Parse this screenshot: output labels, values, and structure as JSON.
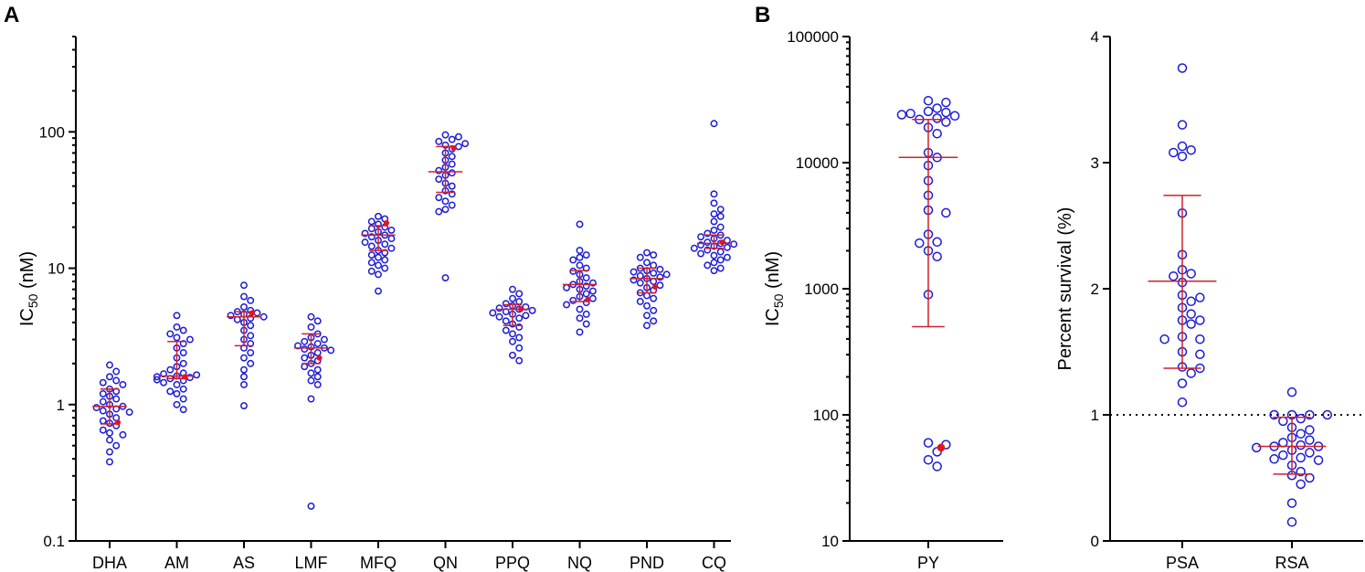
{
  "colors": {
    "point": "#1a1ad6",
    "reference": "#e8141c",
    "stat": "#d0202a"
  },
  "chart_data": [
    {
      "panel": "A",
      "type": "scatter",
      "scale": "log",
      "ylabel_main": "IC",
      "ylabel_sub": "50",
      "ylabel_unit": " (nM)",
      "ylim": [
        0.1,
        500
      ],
      "yticks": [
        0.1,
        1,
        10,
        100
      ],
      "ytick_labels": [
        "0.1",
        "1",
        "10",
        "100"
      ],
      "groups": [
        {
          "name": "DHA",
          "values": [
            1.95,
            1.75,
            1.6,
            1.5,
            1.45,
            1.4,
            1.3,
            1.25,
            1.2,
            1.15,
            1.1,
            1.05,
            1.0,
            0.97,
            0.95,
            0.93,
            0.9,
            0.88,
            0.85,
            0.8,
            0.76,
            0.73,
            0.7,
            0.65,
            0.62,
            0.6,
            0.55,
            0.5,
            0.45,
            0.38
          ],
          "ref": 0.74,
          "median": 0.97,
          "q1": 0.72,
          "q3": 1.3
        },
        {
          "name": "AM",
          "values": [
            4.5,
            3.7,
            3.5,
            3.3,
            3.1,
            3.0,
            2.8,
            2.6,
            2.4,
            2.2,
            2.0,
            1.9,
            1.8,
            1.7,
            1.68,
            1.65,
            1.62,
            1.6,
            1.58,
            1.55,
            1.52,
            1.5,
            1.45,
            1.4,
            1.3,
            1.25,
            1.2,
            1.1,
            1.0,
            0.92
          ],
          "ref": 1.6,
          "median": 1.62,
          "q1": 1.55,
          "q3": 2.9
        },
        {
          "name": "AS",
          "values": [
            7.5,
            6.2,
            5.8,
            5.2,
            4.9,
            4.8,
            4.7,
            4.6,
            4.5,
            4.4,
            4.3,
            4.2,
            4.0,
            3.8,
            3.5,
            3.2,
            3.0,
            2.8,
            2.6,
            2.4,
            2.2,
            2.0,
            1.8,
            1.6,
            1.4,
            0.98
          ],
          "ref": 4.7,
          "median": 4.4,
          "q1": 2.7,
          "q3": 4.8
        },
        {
          "name": "LMF",
          "values": [
            4.4,
            4.1,
            3.7,
            3.3,
            3.1,
            3.0,
            2.9,
            2.8,
            2.7,
            2.65,
            2.6,
            2.55,
            2.5,
            2.4,
            2.3,
            2.2,
            2.1,
            2.0,
            1.9,
            1.8,
            1.7,
            1.6,
            1.5,
            1.4,
            1.1,
            0.18
          ],
          "ref": 2.2,
          "median": 2.6,
          "q1": 2.0,
          "q3": 3.3
        },
        {
          "name": "MFQ",
          "values": [
            24,
            23,
            22,
            21,
            20,
            19.5,
            19,
            18.5,
            18,
            17.5,
            17,
            16.5,
            16,
            15.5,
            15,
            14.5,
            14,
            13.5,
            13,
            12.5,
            12,
            11.5,
            11,
            10.5,
            10,
            9.5,
            9,
            6.8
          ],
          "ref": 21.5,
          "median": 17.5,
          "q1": 13.5,
          "q3": 20.5
        },
        {
          "name": "QN",
          "values": [
            95,
            92,
            88,
            85,
            82,
            80,
            78,
            75,
            70,
            66,
            62,
            58,
            55,
            52,
            50,
            48,
            45,
            42,
            40,
            37,
            35,
            33,
            31,
            29,
            27,
            26,
            8.5
          ],
          "ref": 76,
          "median": 51,
          "q1": 36,
          "q3": 78
        },
        {
          "name": "PPQ",
          "values": [
            7.0,
            6.5,
            6.0,
            5.7,
            5.5,
            5.3,
            5.2,
            5.1,
            5.0,
            4.9,
            4.8,
            4.7,
            4.6,
            4.5,
            4.4,
            4.3,
            4.1,
            3.9,
            3.7,
            3.5,
            3.3,
            3.1,
            2.9,
            2.6,
            2.3,
            2.1
          ],
          "ref": 5.0,
          "median": 5.0,
          "q1": 3.8,
          "q3": 5.4
        },
        {
          "name": "NQ",
          "values": [
            21,
            13.5,
            12.5,
            12,
            11.5,
            10.5,
            10,
            9.5,
            9.0,
            8.5,
            8.0,
            7.8,
            7.6,
            7.4,
            7.2,
            7.0,
            6.8,
            6.5,
            6.2,
            6.0,
            5.8,
            5.6,
            5.4,
            5.0,
            4.6,
            4.3,
            3.9,
            3.4
          ],
          "ref": 5.9,
          "median": 7.6,
          "q1": 5.7,
          "q3": 9.6
        },
        {
          "name": "PND",
          "values": [
            13,
            12.5,
            12,
            11,
            10.5,
            10,
            9.8,
            9.6,
            9.4,
            9.2,
            9.0,
            8.8,
            8.6,
            8.4,
            8.2,
            8.0,
            7.8,
            7.5,
            7.2,
            6.9,
            6.6,
            6.3,
            6.0,
            5.7,
            5.3,
            4.9,
            4.5,
            4.1,
            3.8
          ],
          "ref": 7.3,
          "median": 8.4,
          "q1": 6.6,
          "q3": 10.0
        },
        {
          "name": "CQ",
          "values": [
            115,
            35,
            30,
            27,
            25,
            24,
            22,
            20,
            19,
            18,
            17.5,
            17,
            16.5,
            16,
            15.5,
            15.2,
            15,
            14.8,
            14.5,
            14.2,
            14,
            13.6,
            13.2,
            12.8,
            12.4,
            12,
            11.5,
            11,
            10.5,
            10,
            9.6
          ],
          "ref": 15.5,
          "median": 15.2,
          "q1": 14.0,
          "q3": 17.5
        }
      ]
    },
    {
      "panel": "B",
      "type": "scatter",
      "scale": "log",
      "ylabel_main": "IC",
      "ylabel_sub": "50",
      "ylabel_unit": " (nM)",
      "ylim": [
        10,
        100000
      ],
      "yticks": [
        10,
        100,
        1000,
        10000,
        100000
      ],
      "ytick_labels": [
        "10",
        "100",
        "1000",
        "10000",
        "100000"
      ],
      "groups": [
        {
          "name": "PY",
          "values": [
            31000,
            30000,
            27000,
            25500,
            25000,
            24500,
            24000,
            23500,
            22500,
            22000,
            21000,
            19000,
            17000,
            12000,
            11000,
            9500,
            7200,
            5500,
            4200,
            4000,
            2700,
            2350,
            2300,
            2000,
            1800,
            900,
            60,
            58,
            51,
            44,
            39
          ],
          "ref": 55,
          "median": 11000,
          "q1": 500,
          "q3": 22000
        }
      ]
    },
    {
      "panel": "B-right",
      "type": "scatter",
      "scale": "linear",
      "ylabel": "Percent survival (%)",
      "ylim": [
        0,
        4
      ],
      "yticks": [
        0,
        1,
        2,
        3,
        4
      ],
      "ytick_labels": [
        "0",
        "1",
        "2",
        "3",
        "4"
      ],
      "threshold": 1,
      "groups": [
        {
          "name": "PSA",
          "values": [
            3.75,
            3.3,
            3.13,
            3.1,
            3.08,
            3.05,
            2.6,
            2.27,
            2.15,
            2.12,
            2.1,
            2.05,
            1.95,
            1.93,
            1.9,
            1.85,
            1.8,
            1.75,
            1.75,
            1.72,
            1.62,
            1.6,
            1.6,
            1.5,
            1.48,
            1.38,
            1.37,
            1.33,
            1.25,
            1.1
          ],
          "median": 2.06,
          "q1": 1.37,
          "q3": 2.74
        },
        {
          "name": "RSA",
          "values": [
            1.18,
            1.0,
            1.0,
            1.0,
            1.0,
            0.97,
            0.95,
            0.9,
            0.88,
            0.85,
            0.82,
            0.8,
            0.78,
            0.76,
            0.75,
            0.75,
            0.74,
            0.72,
            0.7,
            0.68,
            0.66,
            0.65,
            0.64,
            0.6,
            0.55,
            0.52,
            0.5,
            0.45,
            0.3,
            0.15
          ],
          "median": 0.75,
          "q1": 0.53,
          "q3": 0.98
        }
      ]
    }
  ],
  "panel_labels": {
    "a": "A",
    "b": "B"
  }
}
